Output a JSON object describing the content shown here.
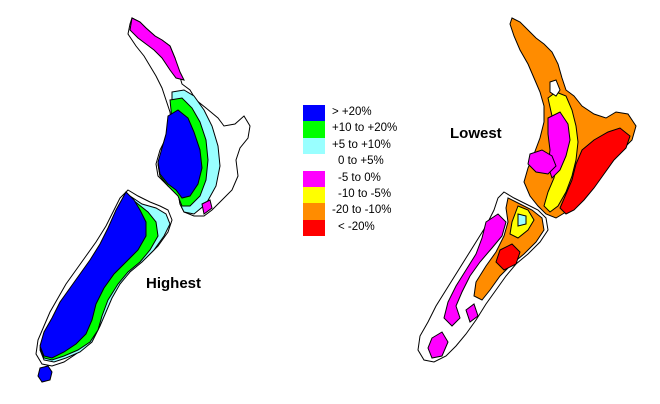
{
  "maps": {
    "left_title": "Highest",
    "right_title": "Lowest"
  },
  "legend": {
    "items": [
      {
        "label": "> +20%",
        "color": "#0000ff"
      },
      {
        "label": "+10 to +20%",
        "color": "#00ff00"
      },
      {
        "label": "+5 to +10%",
        "color": "#99ffff"
      },
      {
        "label": "0 to +5%",
        "color": "#ffffff"
      },
      {
        "label": "-5 to 0%",
        "color": "#ff00ff"
      },
      {
        "label": "-10 to -5%",
        "color": "#ffff00"
      },
      {
        "label": "-20 to -10%",
        "color": "#ff8c00"
      },
      {
        "label": "< -20%",
        "color": "#ff0000"
      }
    ]
  }
}
